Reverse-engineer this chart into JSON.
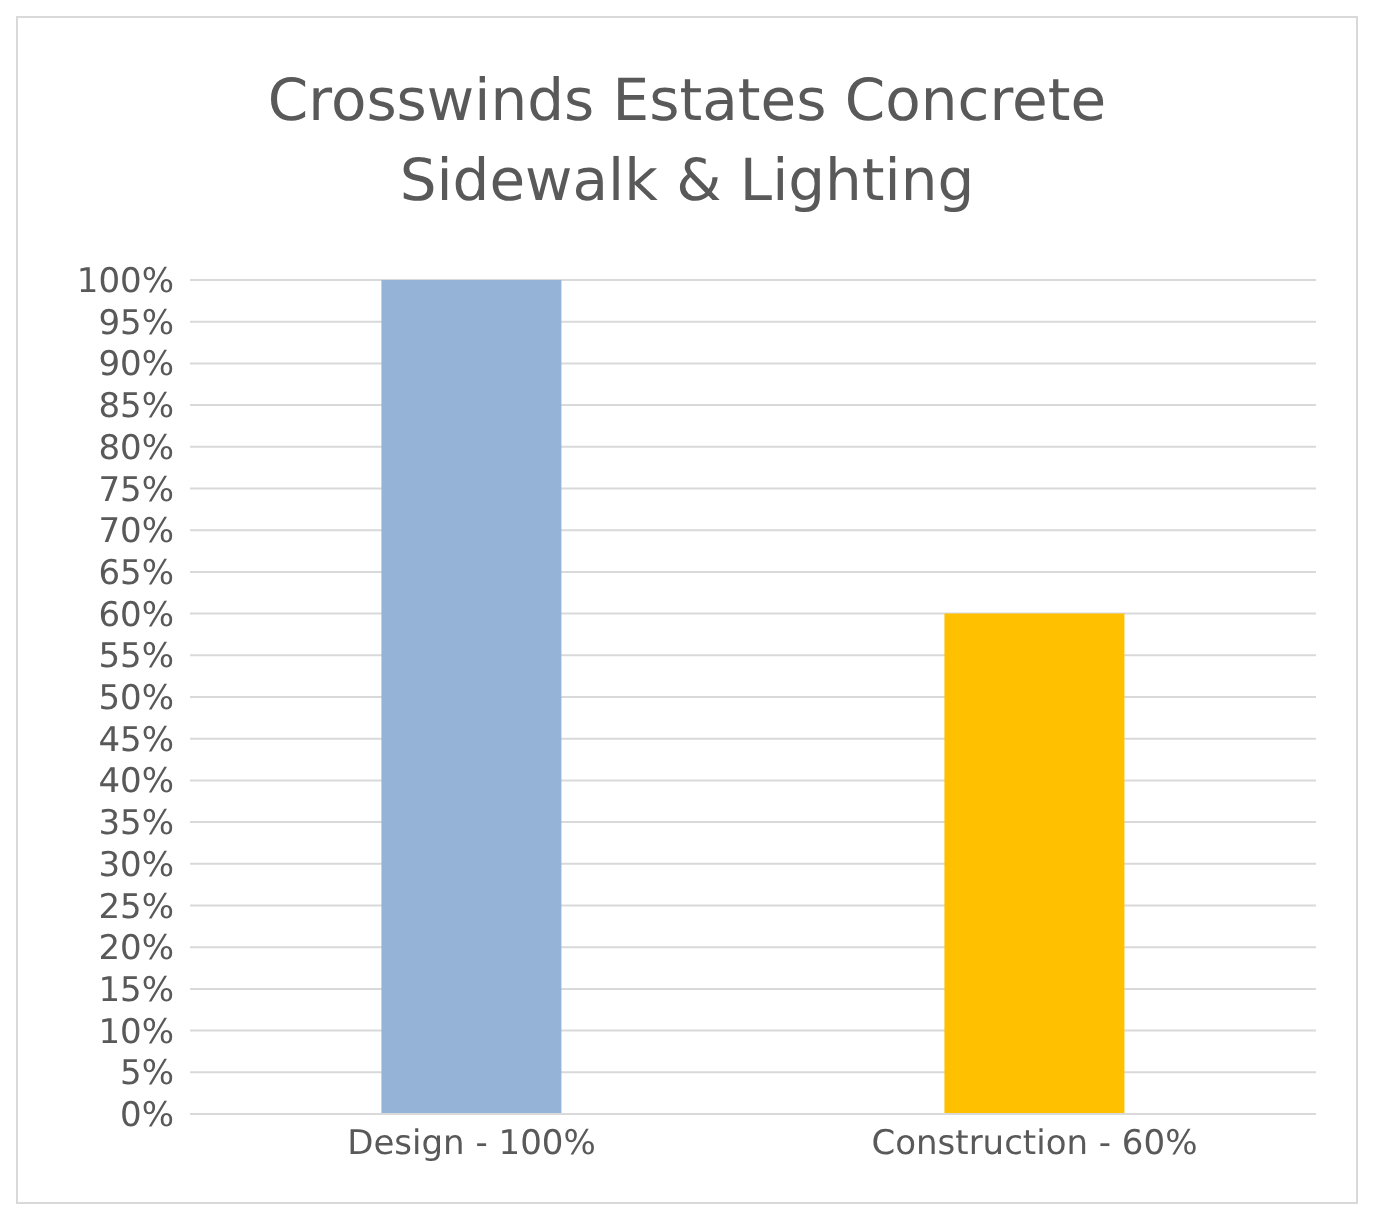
{
  "chart_data": {
    "type": "bar",
    "title": "Crosswinds Estates Concrete Sidewalk & Lighting",
    "categories": [
      "Design - 100%",
      "Construction - 60%"
    ],
    "values": [
      100,
      60
    ],
    "colors": [
      "#95b3d7",
      "#ffc000"
    ],
    "ylim": [
      0,
      100
    ],
    "yticks": [
      {
        "value": 0,
        "label": "0%"
      },
      {
        "value": 5,
        "label": "5%"
      },
      {
        "value": 10,
        "label": "10%"
      },
      {
        "value": 15,
        "label": "15%"
      },
      {
        "value": 20,
        "label": "20%"
      },
      {
        "value": 25,
        "label": "25%"
      },
      {
        "value": 30,
        "label": "30%"
      },
      {
        "value": 35,
        "label": "35%"
      },
      {
        "value": 40,
        "label": "40%"
      },
      {
        "value": 45,
        "label": "45%"
      },
      {
        "value": 50,
        "label": "50%"
      },
      {
        "value": 55,
        "label": "55%"
      },
      {
        "value": 60,
        "label": "60%"
      },
      {
        "value": 65,
        "label": "65%"
      },
      {
        "value": 70,
        "label": "70%"
      },
      {
        "value": 75,
        "label": "75%"
      },
      {
        "value": 80,
        "label": "80%"
      },
      {
        "value": 85,
        "label": "85%"
      },
      {
        "value": 90,
        "label": "90%"
      },
      {
        "value": 95,
        "label": "95%"
      },
      {
        "value": 100,
        "label": "100%"
      }
    ],
    "grid": "y"
  }
}
